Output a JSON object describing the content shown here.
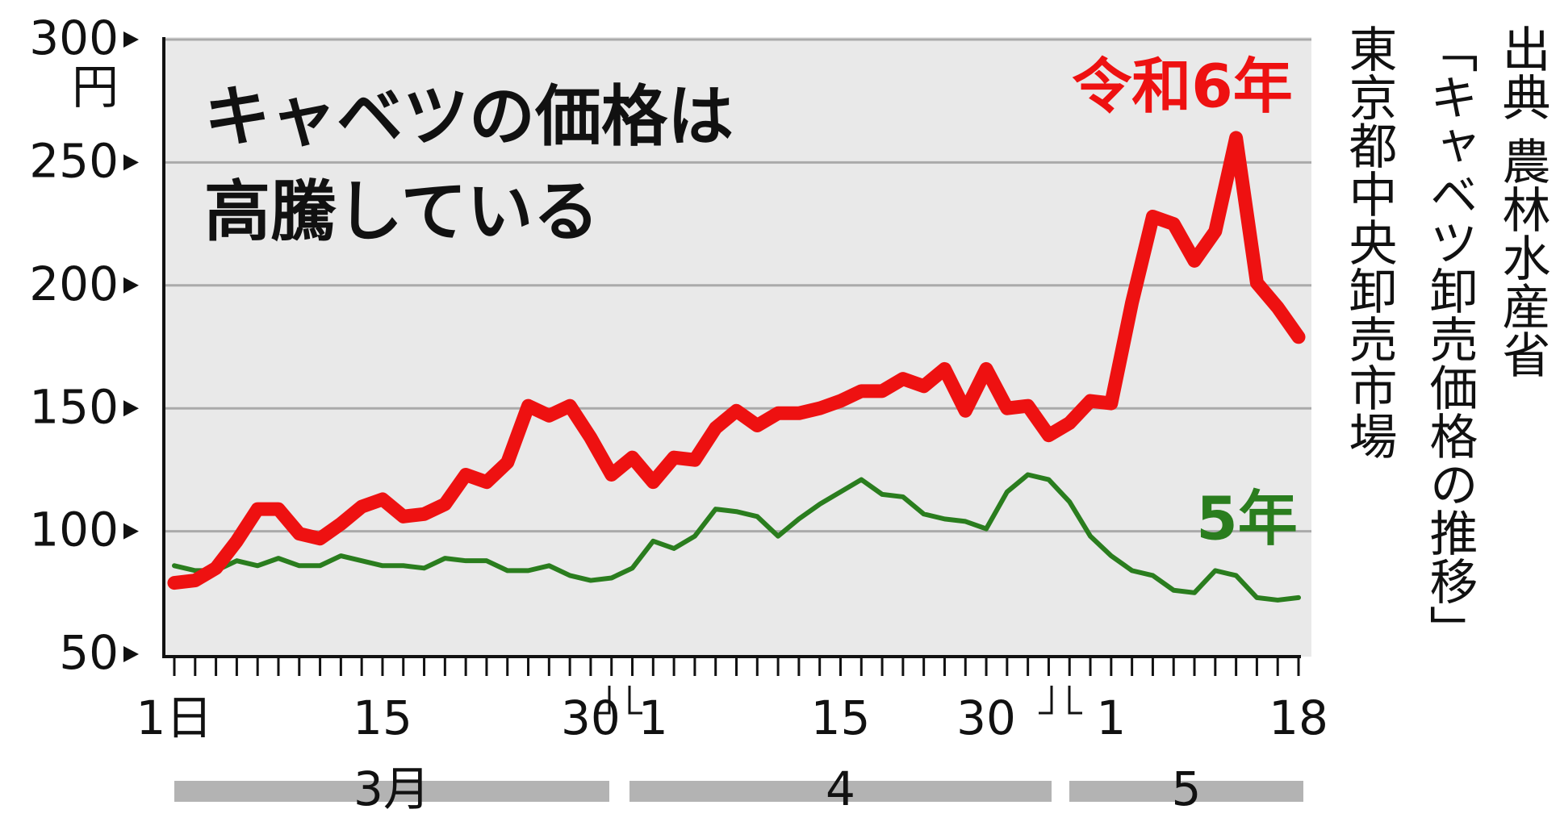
{
  "chart_data": {
    "type": "line",
    "title": [
      "キャベツの価格は",
      "高騰している"
    ],
    "ylabel": "円",
    "categories": [
      "1日",
      null,
      null,
      null,
      null,
      null,
      null,
      null,
      null,
      null,
      "15",
      null,
      null,
      null,
      null,
      null,
      null,
      null,
      null,
      null,
      "30",
      null,
      null,
      "1",
      null,
      null,
      null,
      null,
      null,
      null,
      null,
      null,
      "15",
      null,
      null,
      null,
      null,
      null,
      null,
      "30",
      null,
      null,
      null,
      null,
      null,
      "1",
      null,
      null,
      null,
      null,
      null,
      null,
      null,
      null,
      "18"
    ],
    "months": [
      "3月",
      "4",
      "5"
    ],
    "series": [
      {
        "name": "令和6年",
        "color": "#ee1111",
        "values": [
          79,
          80,
          85,
          96,
          109,
          109,
          99,
          97,
          103,
          110,
          113,
          106,
          107,
          111,
          123,
          120,
          128,
          151,
          147,
          151,
          138,
          123,
          130,
          120,
          130,
          129,
          142,
          149,
          143,
          148,
          148,
          150,
          153,
          157,
          157,
          162,
          159,
          166,
          149,
          166,
          150,
          151,
          139,
          144,
          153,
          152,
          193,
          228,
          225,
          210,
          222,
          260,
          201,
          191,
          179
        ]
      },
      {
        "name": "5年",
        "color": "#2a7d1e",
        "values": [
          86,
          84,
          84,
          88,
          86,
          89,
          86,
          86,
          90,
          88,
          86,
          86,
          85,
          89,
          88,
          88,
          84,
          84,
          86,
          82,
          80,
          81,
          85,
          96,
          93,
          98,
          109,
          108,
          106,
          98,
          105,
          111,
          116,
          121,
          115,
          114,
          107,
          105,
          104,
          101,
          116,
          123,
          121,
          112,
          98,
          90,
          84,
          82,
          76,
          75,
          84,
          82,
          73,
          72,
          73
        ]
      }
    ],
    "ylim": [
      50,
      300
    ],
    "yticks": [
      50,
      100,
      150,
      200,
      250,
      300
    ],
    "grid": true,
    "source": [
      "出典 農林水産省",
      "「キャベツ卸売価格の推移」",
      "東京都中央卸売市場"
    ]
  }
}
